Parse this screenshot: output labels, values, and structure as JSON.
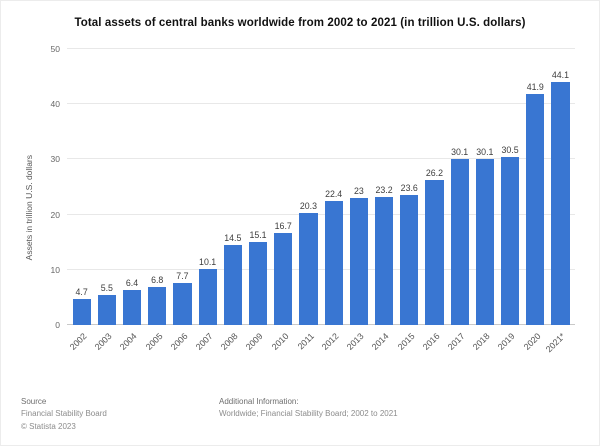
{
  "chart_data": {
    "type": "bar",
    "title": "Total assets of central banks worldwide from 2002 to 2021 (in trillion U.S. dollars)",
    "xlabel": "",
    "ylabel": "Assets in trillion U.S. dollars",
    "categories": [
      "2002",
      "2003",
      "2004",
      "2005",
      "2006",
      "2007",
      "2008",
      "2009",
      "2010",
      "2011",
      "2012",
      "2013",
      "2014",
      "2015",
      "2016",
      "2017",
      "2018",
      "2019",
      "2020",
      "2021*"
    ],
    "values": [
      4.7,
      5.5,
      6.4,
      6.8,
      7.7,
      10.1,
      14.5,
      15.1,
      16.7,
      20.3,
      22.4,
      23,
      23.2,
      23.6,
      26.2,
      30.1,
      30.1,
      30.5,
      41.9,
      44.1
    ],
    "value_labels": [
      "4.7",
      "5.5",
      "6.4",
      "6.8",
      "7.7",
      "10.1",
      "14.5",
      "15.1",
      "16.7",
      "20.3",
      "22.4",
      "23",
      "23.2",
      "23.6",
      "26.2",
      "30.1",
      "30.1",
      "30.5",
      "41.9",
      "44.1"
    ],
    "ylim": [
      0,
      50
    ],
    "yticks": [
      0,
      10,
      20,
      30,
      40,
      50
    ],
    "bar_color": "#3976d2",
    "grid": true,
    "legend": false
  },
  "footer": {
    "source_label": "Source",
    "source_name": "Financial Stability Board",
    "copyright": "© Statista 2023",
    "additional_label": "Additional Information:",
    "additional_text": "Worldwide; Financial Stability Board; 2002 to 2021"
  }
}
